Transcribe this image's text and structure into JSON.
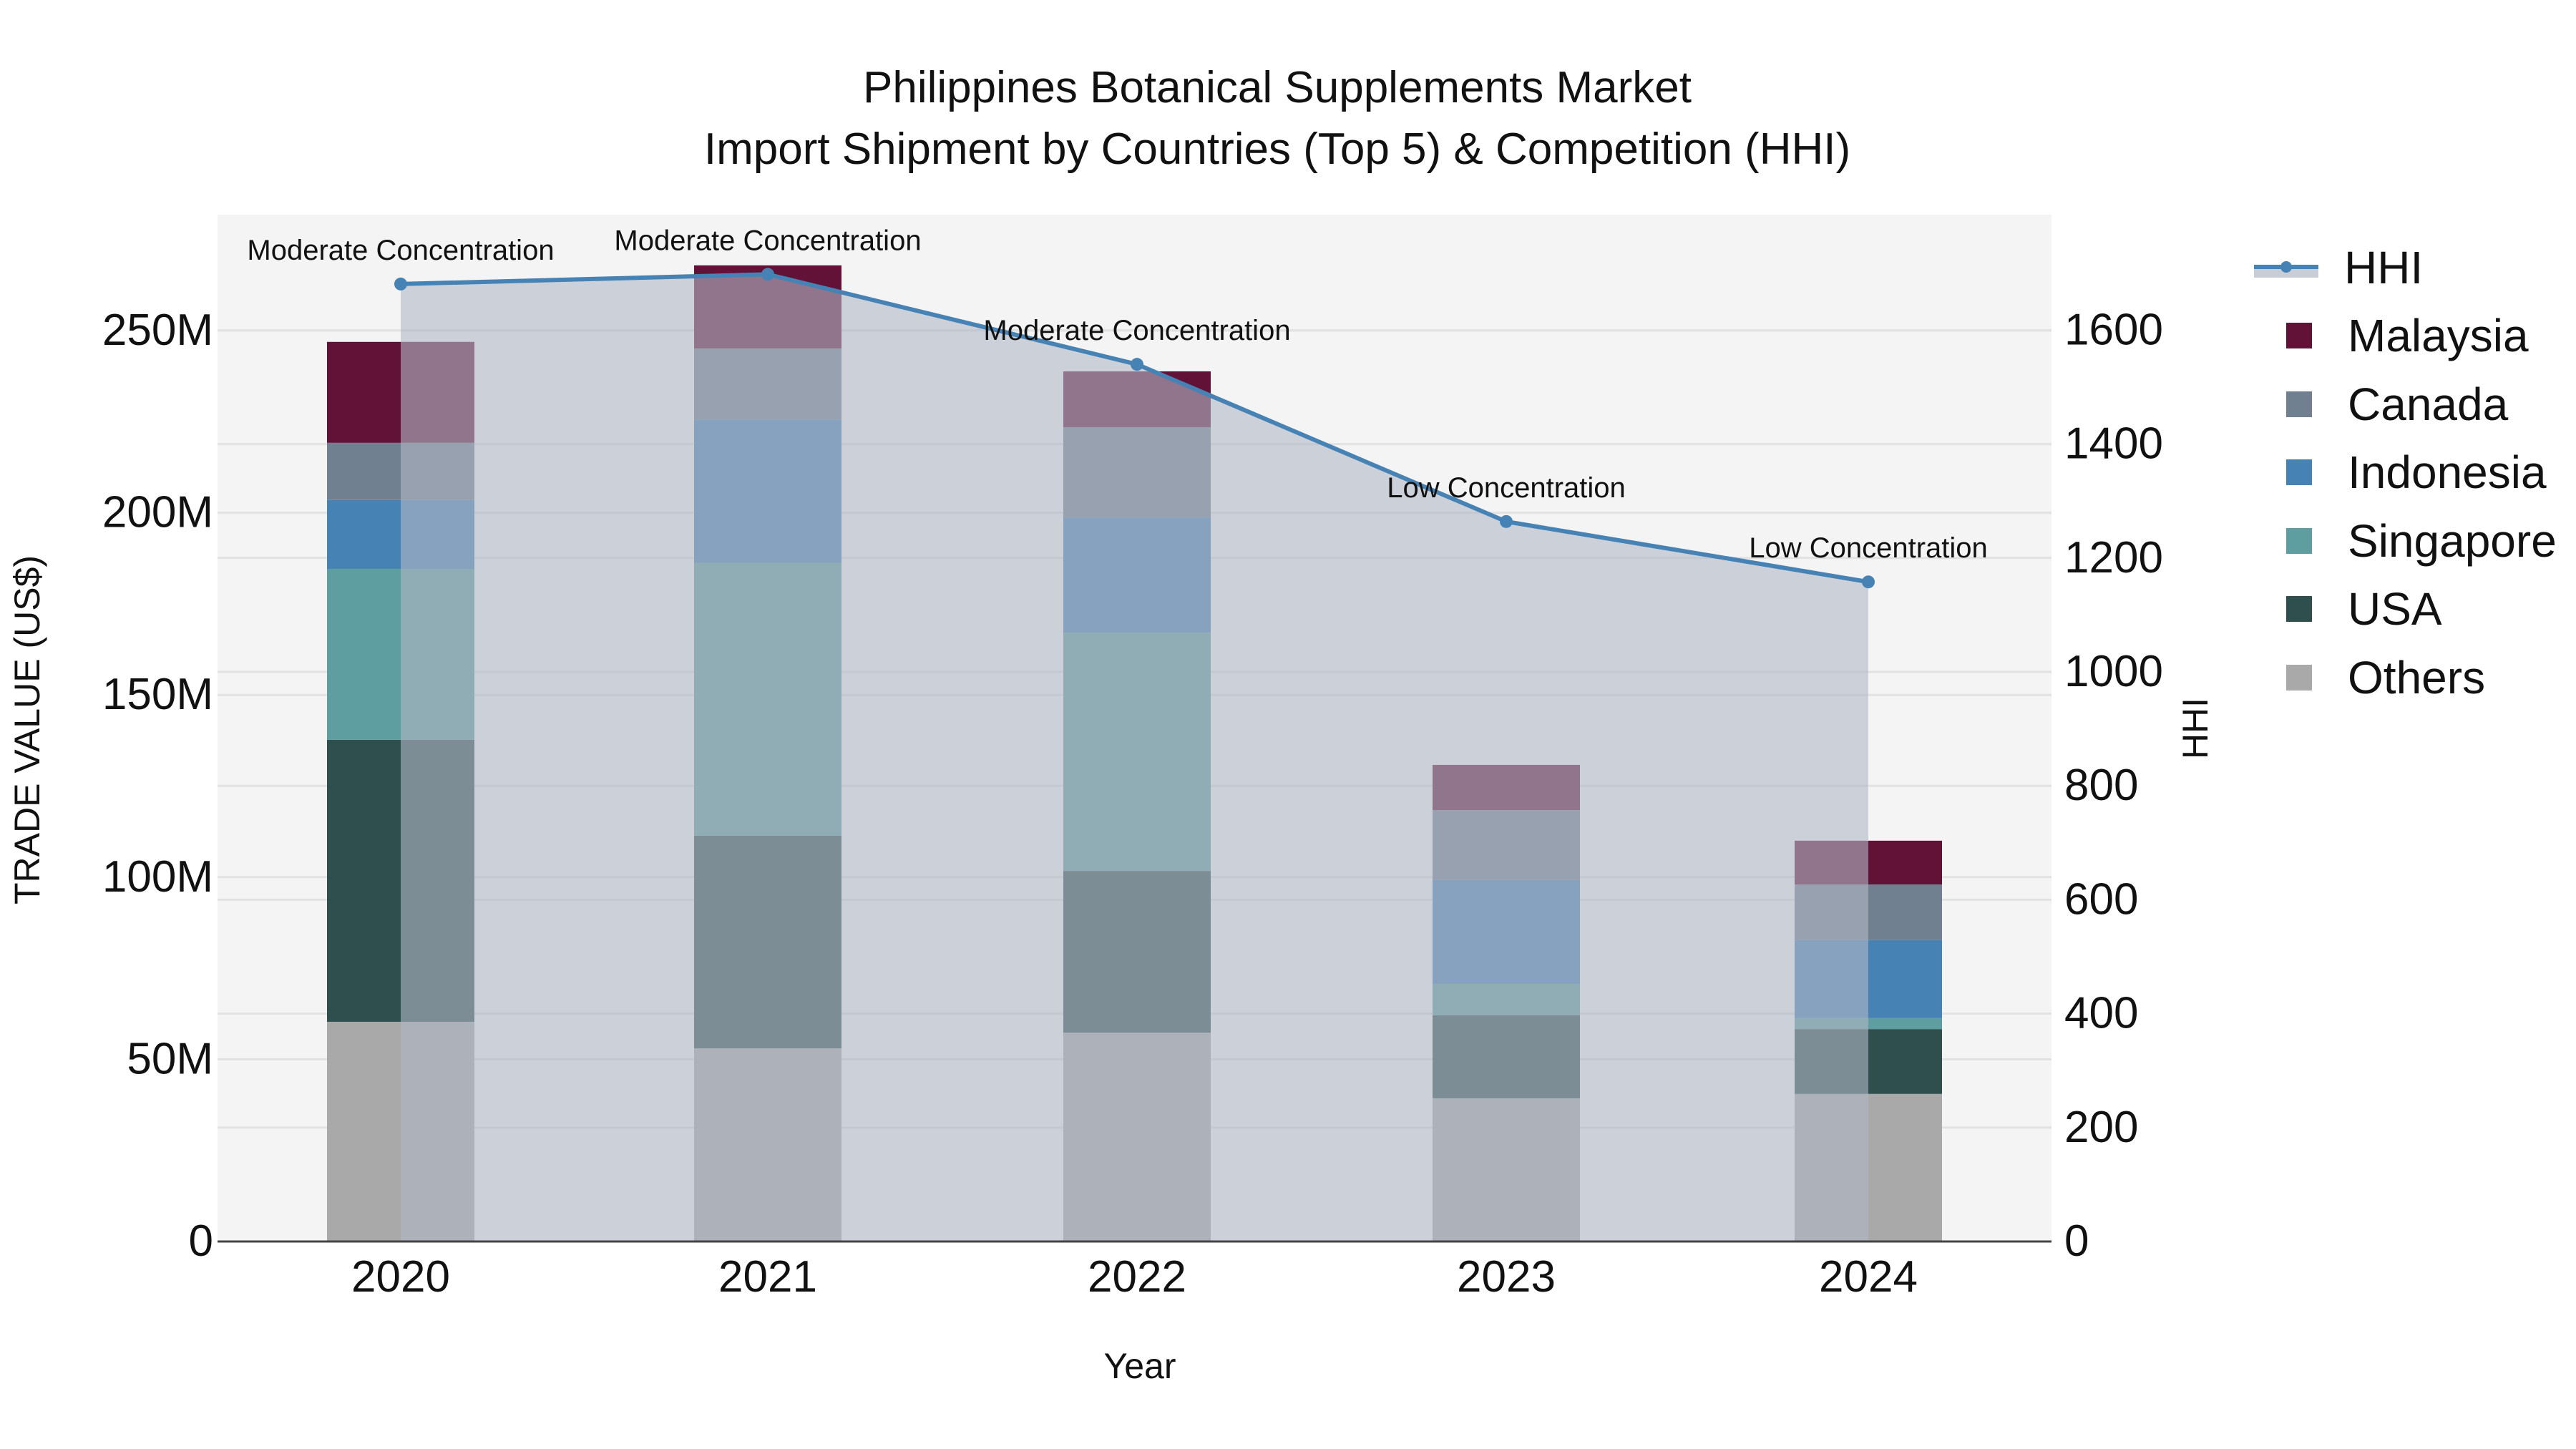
{
  "title": {
    "line1": "Philippines Botanical Supplements Market",
    "line2": "Import Shipment by Countries (Top 5) & Competition (HHI)"
  },
  "axes": {
    "x_title": "Year",
    "y_left_title": "TRADE VALUE (US$)",
    "y_right_title": "HHI",
    "y_left_ticks": [
      "0",
      "50M",
      "100M",
      "150M",
      "200M",
      "250M"
    ],
    "y_right_ticks": [
      "0",
      "200",
      "400",
      "600",
      "800",
      "1000",
      "1200",
      "1400",
      "1600"
    ]
  },
  "legend": {
    "items": [
      {
        "label": "HHI",
        "kind": "line",
        "color": "#4682b4"
      },
      {
        "label": "Malaysia",
        "kind": "box",
        "color": "#621237"
      },
      {
        "label": "Canada",
        "kind": "box",
        "color": "#708090"
      },
      {
        "label": "Indonesia",
        "kind": "box",
        "color": "#4682b4"
      },
      {
        "label": "Singapore",
        "kind": "box",
        "color": "#5f9ea0"
      },
      {
        "label": "USA",
        "kind": "box",
        "color": "#2f4f4f"
      },
      {
        "label": "Others",
        "kind": "box",
        "color": "#a9a9a9"
      }
    ]
  },
  "chart_data": {
    "type": "bar",
    "stacked": true,
    "title": "Philippines Botanical Supplements Market — Import Shipment by Countries (Top 5) & Competition (HHI)",
    "xlabel": "Year",
    "ylabel": "TRADE VALUE (US$)",
    "y2label": "HHI",
    "categories": [
      "2020",
      "2021",
      "2022",
      "2023",
      "2024"
    ],
    "ylim": [
      0,
      282000000
    ],
    "y2lim": [
      0,
      1803
    ],
    "grid": true,
    "legend_position": "right",
    "series": [
      {
        "name": "Others",
        "color": "#a9a9a9",
        "values": [
          60300000,
          53000000,
          57300000,
          39300000,
          40500000
        ]
      },
      {
        "name": "USA",
        "color": "#2f4f4f",
        "values": [
          77400000,
          58400000,
          44400000,
          22800000,
          17800000
        ]
      },
      {
        "name": "Singapore",
        "color": "#5f9ea0",
        "values": [
          46900000,
          74800000,
          65400000,
          8600000,
          3000000
        ]
      },
      {
        "name": "Indonesia",
        "color": "#4682b4",
        "values": [
          18900000,
          39400000,
          31600000,
          28500000,
          21400000
        ]
      },
      {
        "name": "Canada",
        "color": "#708090",
        "values": [
          15700000,
          19500000,
          24800000,
          19200000,
          15300000
        ]
      },
      {
        "name": "Malaysia",
        "color": "#621237",
        "values": [
          27700000,
          22800000,
          15300000,
          12400000,
          12000000
        ]
      }
    ],
    "hhi": {
      "name": "HHI",
      "type": "line+area",
      "axis": "right",
      "color": "#4682b4",
      "fill": "rgba(176,184,197,0.6)",
      "values": [
        1681,
        1698,
        1540,
        1264,
        1158
      ],
      "annotations": [
        "Moderate Concentration",
        "Moderate Concentration",
        "Moderate Concentration",
        "Low Concentration",
        "Low Concentration"
      ]
    }
  }
}
